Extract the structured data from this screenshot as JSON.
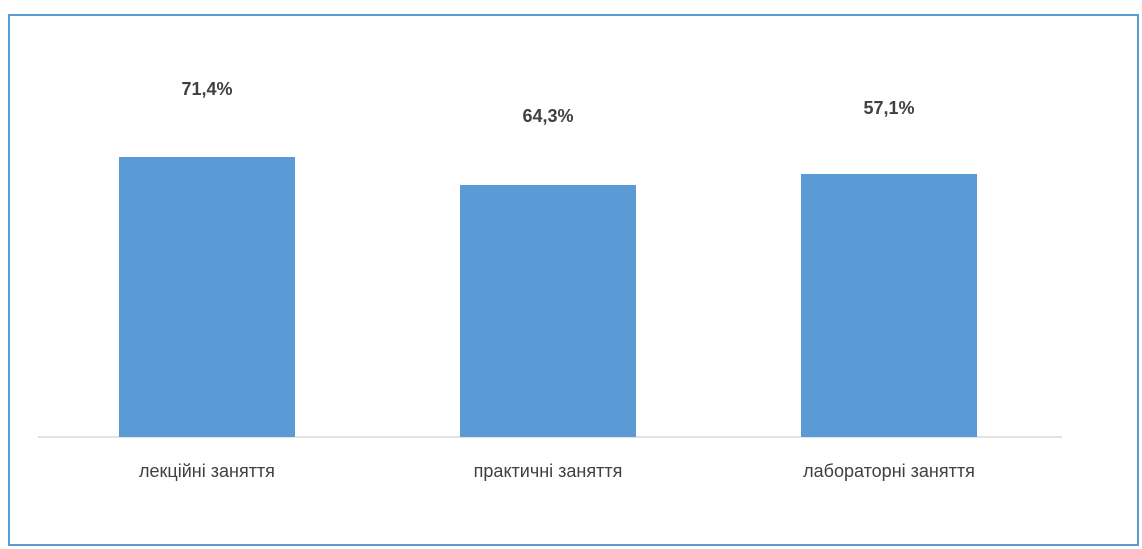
{
  "chart_data": {
    "type": "bar",
    "categories": [
      "лекційні заняття",
      "практичні заняття",
      "лабораторні заняття"
    ],
    "values": [
      71.4,
      64.3,
      57.1
    ],
    "data_labels": [
      "71,4%",
      "64,3%",
      "57,1%"
    ],
    "title": "",
    "xlabel": "",
    "ylabel": "",
    "grid": false,
    "legend": "none",
    "colors": {
      "bar": "#5b9bd5",
      "border": "#5b9bd5",
      "axis": "#d9d9d9",
      "text": "#404040"
    }
  }
}
